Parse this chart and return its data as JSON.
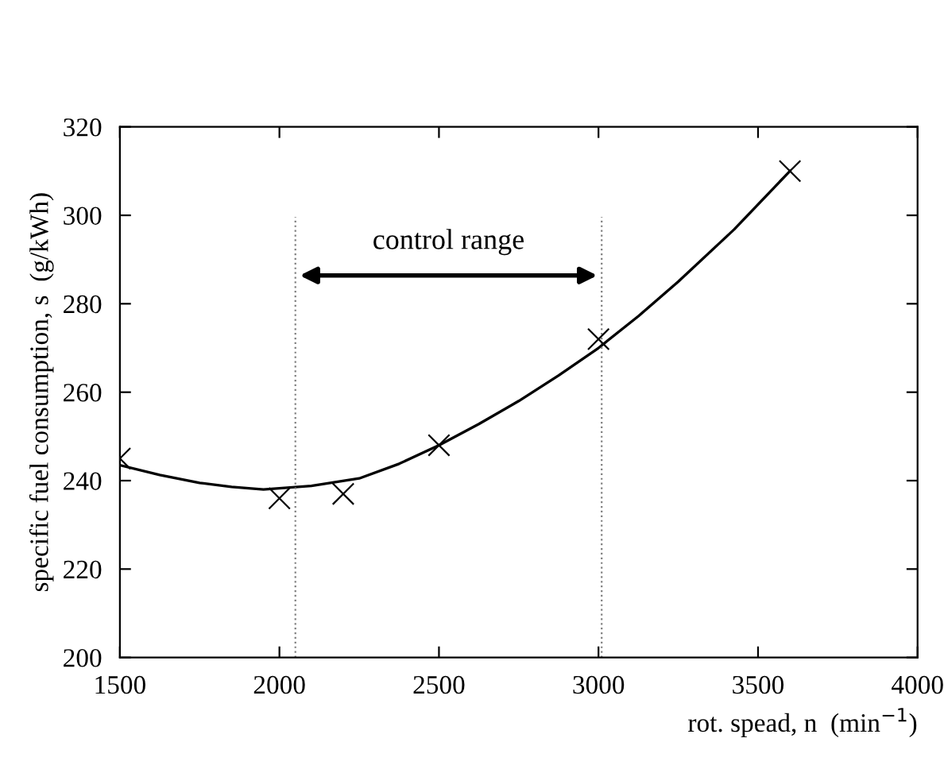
{
  "chart_data": {
    "type": "scatter",
    "xlabel": "rot. spead, n  (min$^{−1}$)",
    "ylabel": "specific fuel consumption, s  (g/kWh)",
    "xlim": [
      1500,
      4000
    ],
    "ylim": [
      200,
      320
    ],
    "xticks": [
      1500,
      2000,
      2500,
      3000,
      3500,
      4000
    ],
    "yticks": [
      200,
      220,
      240,
      260,
      280,
      300,
      320
    ],
    "grid": false,
    "legend": false,
    "series": [
      {
        "color": "#000000",
        "marker": "cross",
        "x": [
          1500,
          2000,
          2200,
          2500,
          3000,
          3600
        ],
        "values": [
          245,
          236,
          237,
          248,
          272,
          310
        ]
      },
      {
        "type": "line",
        "color": "#000000",
        "marker": "none",
        "line_style": "solid",
        "x": [
          1500,
          1625,
          1750,
          1850,
          1950,
          2100,
          2250,
          2375,
          2500,
          2625,
          2750,
          2875,
          3000,
          3125,
          3250,
          3425,
          3600
        ],
        "values": [
          243.5,
          241.3,
          239.5,
          238.6,
          238,
          238.8,
          240.5,
          243.8,
          248,
          252.8,
          258,
          263.8,
          270,
          277.2,
          285,
          296.8,
          310
        ]
      }
    ],
    "ref_lines": [
      {
        "axis": "x",
        "value": 2050,
        "color": "#808080",
        "line_style": "dotted"
      },
      {
        "axis": "x",
        "value": 3010,
        "color": "#808080",
        "line_style": "dotted"
      }
    ],
    "annotations": [
      "control range"
    ]
  }
}
